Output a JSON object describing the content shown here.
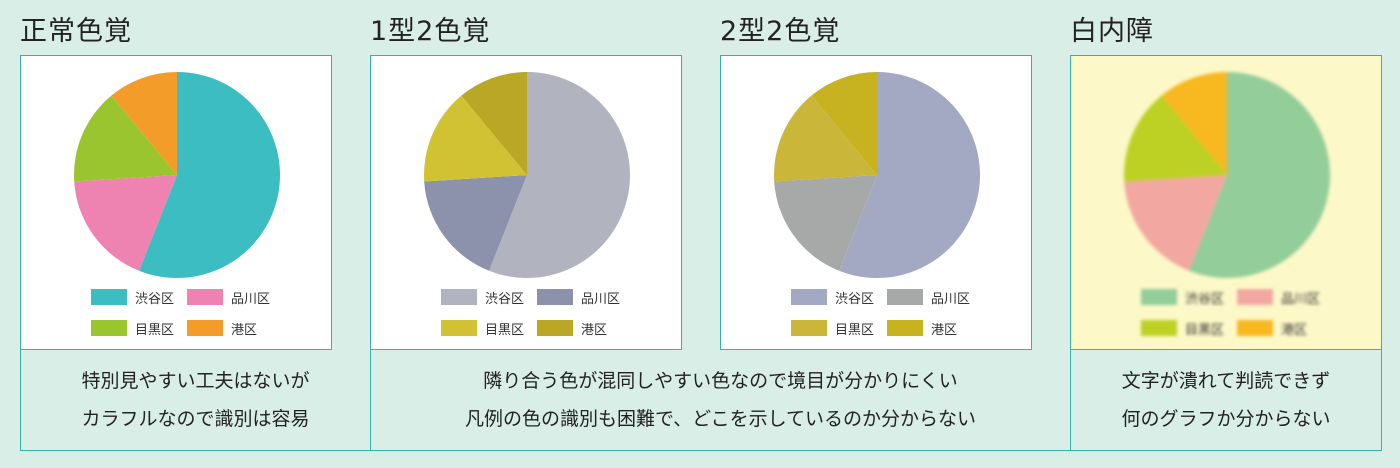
{
  "panels": [
    {
      "title": "正常色覚",
      "description": [
        "特別見やすい工夫はないが",
        "カラフルなので識別は容易"
      ]
    },
    {
      "title": "1型2色覚",
      "description": [
        "隣り合う色が混同しやすい色なので境目が分かりにくい",
        "凡例の色の識別も困難で、どこを示しているのか分からない"
      ]
    },
    {
      "title": "2型2色覚",
      "description": []
    },
    {
      "title": "白内障",
      "description": [
        "文字が潰れて判読できず",
        "何のグラフか分からない"
      ]
    }
  ],
  "chart_data": [
    {
      "type": "pie",
      "title": "",
      "categories": [
        "渋谷区",
        "品川区",
        "目黒区",
        "港区"
      ],
      "values": [
        56,
        18,
        15,
        11
      ],
      "colors": [
        "#3bbdc1",
        "#ee83b2",
        "#9ac52e",
        "#f39c2a"
      ],
      "legend": "bottom"
    },
    {
      "type": "pie",
      "title": "",
      "categories": [
        "渋谷区",
        "品川区",
        "目黒区",
        "港区"
      ],
      "values": [
        56,
        18,
        15,
        11
      ],
      "colors": [
        "#b1b3bf",
        "#8c92ab",
        "#d0c232",
        "#b9a725"
      ],
      "legend": "bottom"
    },
    {
      "type": "pie",
      "title": "",
      "categories": [
        "渋谷区",
        "品川区",
        "目黒区",
        "港区"
      ],
      "values": [
        56,
        18,
        15,
        11
      ],
      "colors": [
        "#a3a8c3",
        "#a7a8a8",
        "#cab73a",
        "#c7b220"
      ],
      "legend": "bottom"
    },
    {
      "type": "pie",
      "title": "",
      "categories": [
        "渋谷区",
        "品川区",
        "目黒区",
        "港区"
      ],
      "values": [
        56,
        18,
        15,
        11
      ],
      "colors": [
        "#93cd9a",
        "#f2a8a1",
        "#bcd124",
        "#f7b820"
      ],
      "legend": "bottom",
      "blurred": true
    }
  ]
}
